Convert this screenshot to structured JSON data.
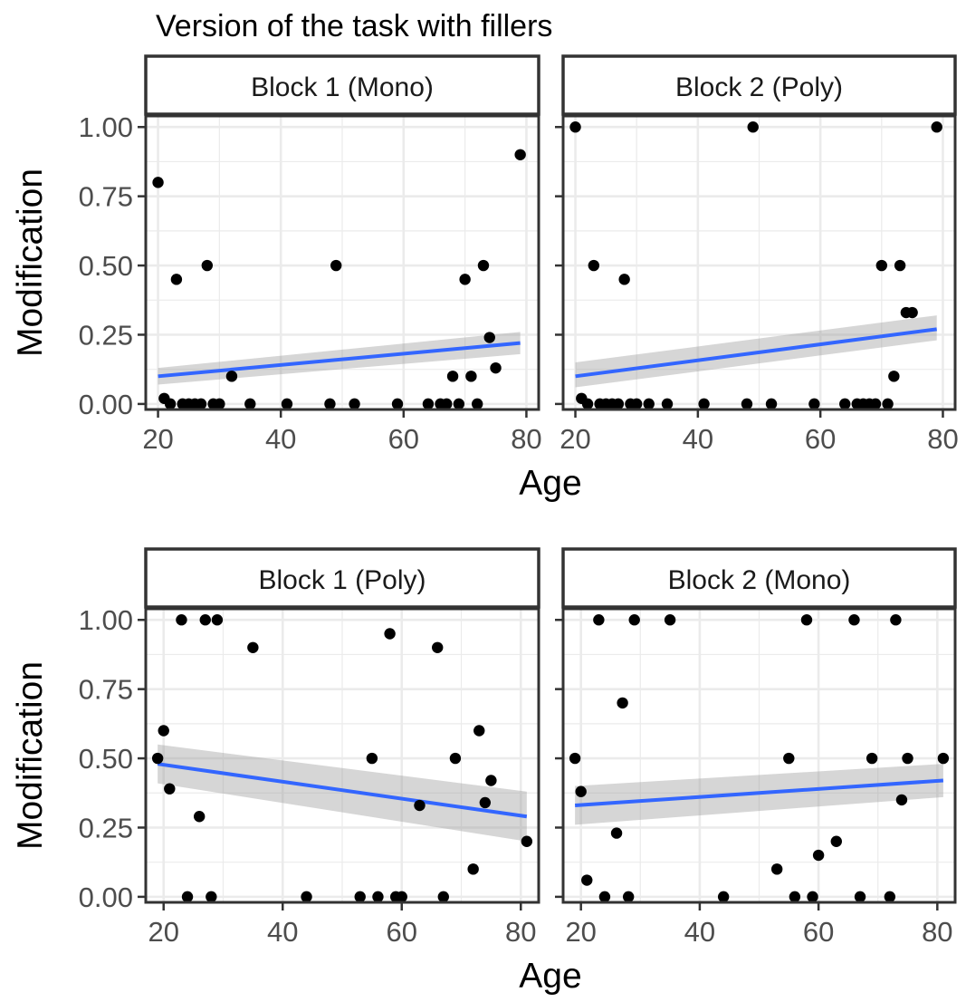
{
  "title": "Version of the task with fillers",
  "chart_data": [
    {
      "type": "scatter",
      "panel_title": "Block 1 (Mono)",
      "xlabel": "Age",
      "ylabel": "Modification",
      "xlim": [
        18,
        82
      ],
      "ylim": [
        -0.02,
        1.04
      ],
      "xticks": [
        "20",
        "40",
        "60",
        "80"
      ],
      "yticks": [
        "0.00",
        "0.25",
        "0.50",
        "0.75",
        "1.00"
      ],
      "points": [
        {
          "x": 20,
          "y": 0.8
        },
        {
          "x": 21,
          "y": 0.02
        },
        {
          "x": 22,
          "y": 0.0
        },
        {
          "x": 23,
          "y": 0.45
        },
        {
          "x": 24,
          "y": 0.0
        },
        {
          "x": 25,
          "y": 0.0
        },
        {
          "x": 26,
          "y": 0.0
        },
        {
          "x": 27,
          "y": 0.0
        },
        {
          "x": 28,
          "y": 0.5
        },
        {
          "x": 29,
          "y": 0.0
        },
        {
          "x": 30,
          "y": 0.0
        },
        {
          "x": 32,
          "y": 0.1
        },
        {
          "x": 35,
          "y": 0.0
        },
        {
          "x": 41,
          "y": 0.0
        },
        {
          "x": 48,
          "y": 0.0
        },
        {
          "x": 49,
          "y": 0.5
        },
        {
          "x": 52,
          "y": 0.0
        },
        {
          "x": 59,
          "y": 0.0
        },
        {
          "x": 64,
          "y": 0.0
        },
        {
          "x": 66,
          "y": 0.0
        },
        {
          "x": 67,
          "y": 0.0
        },
        {
          "x": 68,
          "y": 0.1
        },
        {
          "x": 69,
          "y": 0.0
        },
        {
          "x": 70,
          "y": 0.45
        },
        {
          "x": 71,
          "y": 0.1
        },
        {
          "x": 72,
          "y": 0.0
        },
        {
          "x": 73,
          "y": 0.5
        },
        {
          "x": 74,
          "y": 0.24
        },
        {
          "x": 75,
          "y": 0.13
        },
        {
          "x": 79,
          "y": 0.9
        }
      ],
      "fit": {
        "x": [
          20,
          79
        ],
        "y": [
          0.1,
          0.22
        ],
        "band_lo": [
          0.07,
          0.18
        ],
        "band_hi": [
          0.13,
          0.26
        ]
      }
    },
    {
      "type": "scatter",
      "panel_title": "Block 2 (Poly)",
      "xlabel": "Age",
      "ylabel": "Modification",
      "xlim": [
        18,
        82
      ],
      "ylim": [
        -0.02,
        1.04
      ],
      "xticks": [
        "20",
        "40",
        "60",
        "80"
      ],
      "yticks": [
        "0.00",
        "0.25",
        "0.50",
        "0.75",
        "1.00"
      ],
      "points": [
        {
          "x": 20,
          "y": 1.0
        },
        {
          "x": 21,
          "y": 0.02
        },
        {
          "x": 22,
          "y": 0.0
        },
        {
          "x": 23,
          "y": 0.5
        },
        {
          "x": 24,
          "y": 0.0
        },
        {
          "x": 25,
          "y": 0.0
        },
        {
          "x": 26,
          "y": 0.0
        },
        {
          "x": 27,
          "y": 0.0
        },
        {
          "x": 28,
          "y": 0.45
        },
        {
          "x": 29,
          "y": 0.0
        },
        {
          "x": 30,
          "y": 0.0
        },
        {
          "x": 32,
          "y": 0.0
        },
        {
          "x": 35,
          "y": 0.0
        },
        {
          "x": 41,
          "y": 0.0
        },
        {
          "x": 48,
          "y": 0.0
        },
        {
          "x": 49,
          "y": 1.0
        },
        {
          "x": 52,
          "y": 0.0
        },
        {
          "x": 59,
          "y": 0.0
        },
        {
          "x": 64,
          "y": 0.0
        },
        {
          "x": 66,
          "y": 0.0
        },
        {
          "x": 67,
          "y": 0.0
        },
        {
          "x": 68,
          "y": 0.0
        },
        {
          "x": 69,
          "y": 0.0
        },
        {
          "x": 70,
          "y": 0.5
        },
        {
          "x": 71,
          "y": 0.0
        },
        {
          "x": 72,
          "y": 0.1
        },
        {
          "x": 73,
          "y": 0.5
        },
        {
          "x": 74,
          "y": 0.33
        },
        {
          "x": 75,
          "y": 0.33
        },
        {
          "x": 79,
          "y": 1.0
        }
      ],
      "fit": {
        "x": [
          20,
          79
        ],
        "y": [
          0.1,
          0.27
        ],
        "band_lo": [
          0.06,
          0.23
        ],
        "band_hi": [
          0.15,
          0.32
        ]
      }
    },
    {
      "type": "scatter",
      "panel_title": "Block 1 (Poly)",
      "xlabel": "Age",
      "ylabel": "Modification",
      "xlim": [
        17,
        83
      ],
      "ylim": [
        -0.02,
        1.04
      ],
      "xticks": [
        "20",
        "40",
        "60",
        "80"
      ],
      "yticks": [
        "0.00",
        "0.25",
        "0.50",
        "0.75",
        "1.00"
      ],
      "points": [
        {
          "x": 19,
          "y": 0.5
        },
        {
          "x": 20,
          "y": 0.6
        },
        {
          "x": 21,
          "y": 0.39
        },
        {
          "x": 23,
          "y": 1.0
        },
        {
          "x": 24,
          "y": 0.0
        },
        {
          "x": 26,
          "y": 0.29
        },
        {
          "x": 27,
          "y": 1.0
        },
        {
          "x": 28,
          "y": 0.0
        },
        {
          "x": 29,
          "y": 1.0
        },
        {
          "x": 35,
          "y": 0.9
        },
        {
          "x": 44,
          "y": 0.0
        },
        {
          "x": 53,
          "y": 0.0
        },
        {
          "x": 55,
          "y": 0.5
        },
        {
          "x": 56,
          "y": 0.0
        },
        {
          "x": 58,
          "y": 0.95
        },
        {
          "x": 59,
          "y": 0.0
        },
        {
          "x": 60,
          "y": 0.0
        },
        {
          "x": 63,
          "y": 0.33
        },
        {
          "x": 66,
          "y": 0.9
        },
        {
          "x": 67,
          "y": 0.0
        },
        {
          "x": 69,
          "y": 0.5
        },
        {
          "x": 72,
          "y": 0.1
        },
        {
          "x": 73,
          "y": 0.6
        },
        {
          "x": 74,
          "y": 0.34
        },
        {
          "x": 75,
          "y": 0.42
        },
        {
          "x": 81,
          "y": 0.2
        }
      ],
      "fit": {
        "x": [
          19,
          81
        ],
        "y": [
          0.48,
          0.29
        ],
        "band_lo": [
          0.41,
          0.2
        ],
        "band_hi": [
          0.55,
          0.38
        ]
      }
    },
    {
      "type": "scatter",
      "panel_title": "Block 2 (Mono)",
      "xlabel": "Age",
      "ylabel": "Modification",
      "xlim": [
        17,
        83
      ],
      "ylim": [
        -0.02,
        1.04
      ],
      "xticks": [
        "20",
        "40",
        "60",
        "80"
      ],
      "yticks": [
        "0.00",
        "0.25",
        "0.50",
        "0.75",
        "1.00"
      ],
      "points": [
        {
          "x": 19,
          "y": 0.5
        },
        {
          "x": 20,
          "y": 0.38
        },
        {
          "x": 21,
          "y": 0.06
        },
        {
          "x": 23,
          "y": 1.0
        },
        {
          "x": 24,
          "y": 0.0
        },
        {
          "x": 26,
          "y": 0.23
        },
        {
          "x": 27,
          "y": 0.7
        },
        {
          "x": 28,
          "y": 0.0
        },
        {
          "x": 29,
          "y": 1.0
        },
        {
          "x": 35,
          "y": 1.0
        },
        {
          "x": 44,
          "y": 0.0
        },
        {
          "x": 53,
          "y": 0.1
        },
        {
          "x": 55,
          "y": 0.5
        },
        {
          "x": 56,
          "y": 0.0
        },
        {
          "x": 58,
          "y": 1.0
        },
        {
          "x": 59,
          "y": 0.0
        },
        {
          "x": 60,
          "y": 0.15
        },
        {
          "x": 63,
          "y": 0.2
        },
        {
          "x": 66,
          "y": 1.0
        },
        {
          "x": 67,
          "y": 0.0
        },
        {
          "x": 69,
          "y": 0.5
        },
        {
          "x": 72,
          "y": 0.0
        },
        {
          "x": 73,
          "y": 1.0
        },
        {
          "x": 74,
          "y": 0.35
        },
        {
          "x": 75,
          "y": 0.5
        },
        {
          "x": 81,
          "y": 0.5
        }
      ],
      "fit": {
        "x": [
          19,
          81
        ],
        "y": [
          0.33,
          0.42
        ],
        "band_lo": [
          0.26,
          0.36
        ],
        "band_hi": [
          0.4,
          0.48
        ]
      }
    }
  ],
  "colors": {
    "fit_line": "#3366FF",
    "band": "#999999",
    "point": "#000000",
    "strip_bg": "#ffffff",
    "border": "#333333",
    "grid": "#ebebeb",
    "text": "#4d4d4d"
  }
}
